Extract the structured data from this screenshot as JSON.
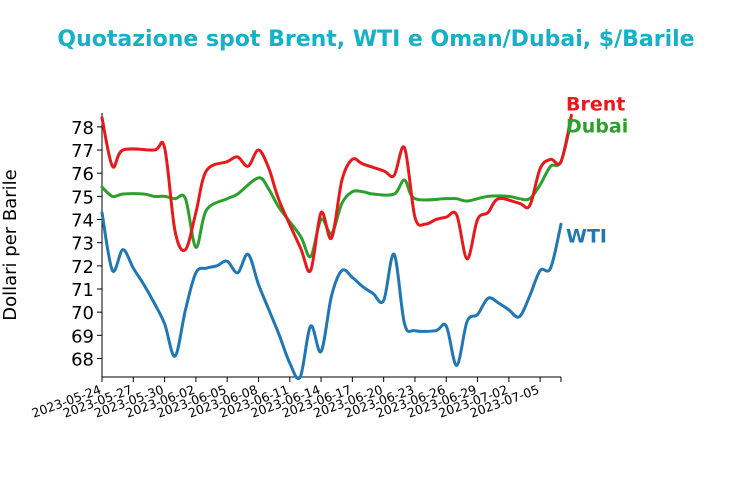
{
  "chart_data": {
    "type": "line",
    "title": "Quotazione spot Brent, WTI e Oman/Dubai, $/Barile",
    "xlabel": "",
    "ylabel": "Dollari per Barile",
    "ylim": [
      67.2,
      78.6
    ],
    "yticks": [
      68,
      69,
      70,
      71,
      72,
      73,
      74,
      75,
      76,
      77,
      78
    ],
    "xlim": [
      "2023-05-24",
      "2023-07-07"
    ],
    "xticks": [
      "2023-05-24",
      "2023-05-27",
      "2023-05-30",
      "2023-06-02",
      "2023-06-05",
      "2023-06-08",
      "2023-06-11",
      "2023-06-14",
      "2023-06-17",
      "2023-06-20",
      "2023-06-23",
      "2023-06-26",
      "2023-06-29",
      "2023-07-02",
      "2023-07-05"
    ],
    "grid": false,
    "legend": "direct-labels-right",
    "colors": {
      "title": "#17b0c8",
      "Brent": "#e8191b",
      "Dubai": "#2ca02c",
      "WTI": "#1f77b4"
    },
    "series": [
      {
        "name": "Brent",
        "label_y": 78.7,
        "points": [
          [
            "2023-05-24",
            78.4
          ],
          [
            "2023-05-25",
            76.3
          ],
          [
            "2023-05-26",
            77.0
          ],
          [
            "2023-05-29",
            77.0
          ],
          [
            "2023-05-30",
            77.1
          ],
          [
            "2023-05-31",
            73.5
          ],
          [
            "2023-06-01",
            72.7
          ],
          [
            "2023-06-02",
            74.3
          ],
          [
            "2023-06-03",
            76.1
          ],
          [
            "2023-06-05",
            76.5
          ],
          [
            "2023-06-06",
            76.7
          ],
          [
            "2023-06-07",
            76.3
          ],
          [
            "2023-06-08",
            77.0
          ],
          [
            "2023-06-09",
            76.2
          ],
          [
            "2023-06-10",
            74.8
          ],
          [
            "2023-06-12",
            72.8
          ],
          [
            "2023-06-13",
            71.8
          ],
          [
            "2023-06-14",
            74.3
          ],
          [
            "2023-06-15",
            73.2
          ],
          [
            "2023-06-16",
            75.7
          ],
          [
            "2023-06-17",
            76.6
          ],
          [
            "2023-06-18",
            76.4
          ],
          [
            "2023-06-20",
            76.1
          ],
          [
            "2023-06-21",
            75.9
          ],
          [
            "2023-06-22",
            77.1
          ],
          [
            "2023-06-23",
            74.1
          ],
          [
            "2023-06-24",
            73.8
          ],
          [
            "2023-06-25",
            74.0
          ],
          [
            "2023-06-26",
            74.1
          ],
          [
            "2023-06-27",
            74.2
          ],
          [
            "2023-06-28",
            72.3
          ],
          [
            "2023-06-29",
            74.0
          ],
          [
            "2023-06-30",
            74.3
          ],
          [
            "2023-07-01",
            74.9
          ],
          [
            "2023-07-03",
            74.7
          ],
          [
            "2023-07-04",
            74.6
          ],
          [
            "2023-07-05",
            76.2
          ],
          [
            "2023-07-06",
            76.6
          ],
          [
            "2023-07-07",
            76.5
          ],
          [
            "2023-07-08",
            78.5
          ]
        ]
      },
      {
        "name": "Dubai",
        "label_y": 77.75,
        "points": [
          [
            "2023-05-24",
            75.4
          ],
          [
            "2023-05-25",
            75.0
          ],
          [
            "2023-05-26",
            75.1
          ],
          [
            "2023-05-28",
            75.1
          ],
          [
            "2023-05-29",
            75.0
          ],
          [
            "2023-05-30",
            75.0
          ],
          [
            "2023-05-31",
            74.9
          ],
          [
            "2023-06-01",
            74.9
          ],
          [
            "2023-06-02",
            72.8
          ],
          [
            "2023-06-03",
            74.4
          ],
          [
            "2023-06-05",
            74.9
          ],
          [
            "2023-06-06",
            75.1
          ],
          [
            "2023-06-08",
            75.8
          ],
          [
            "2023-06-09",
            75.3
          ],
          [
            "2023-06-10",
            74.5
          ],
          [
            "2023-06-12",
            73.3
          ],
          [
            "2023-06-13",
            72.4
          ],
          [
            "2023-06-14",
            74.0
          ],
          [
            "2023-06-15",
            73.4
          ],
          [
            "2023-06-16",
            74.7
          ],
          [
            "2023-06-17",
            75.2
          ],
          [
            "2023-06-18",
            75.2
          ],
          [
            "2023-06-19",
            75.1
          ],
          [
            "2023-06-21",
            75.1
          ],
          [
            "2023-06-22",
            75.7
          ],
          [
            "2023-06-23",
            74.9
          ],
          [
            "2023-06-26",
            74.9
          ],
          [
            "2023-06-27",
            74.9
          ],
          [
            "2023-06-28",
            74.8
          ],
          [
            "2023-06-30",
            75.0
          ],
          [
            "2023-07-02",
            75.0
          ],
          [
            "2023-07-03",
            74.9
          ],
          [
            "2023-07-04",
            74.9
          ],
          [
            "2023-07-05",
            75.5
          ],
          [
            "2023-07-06",
            76.3
          ],
          [
            "2023-07-07",
            76.5
          ],
          [
            "2023-07-08",
            78.3
          ]
        ]
      },
      {
        "name": "WTI",
        "label_y": 73.0,
        "points": [
          [
            "2023-05-24",
            74.3
          ],
          [
            "2023-05-25",
            71.8
          ],
          [
            "2023-05-26",
            72.7
          ],
          [
            "2023-05-27",
            71.9
          ],
          [
            "2023-05-28",
            71.2
          ],
          [
            "2023-05-29",
            70.4
          ],
          [
            "2023-05-30",
            69.5
          ],
          [
            "2023-05-31",
            68.1
          ],
          [
            "2023-06-01",
            70.1
          ],
          [
            "2023-06-02",
            71.7
          ],
          [
            "2023-06-03",
            71.9
          ],
          [
            "2023-06-04",
            72.0
          ],
          [
            "2023-06-05",
            72.2
          ],
          [
            "2023-06-06",
            71.7
          ],
          [
            "2023-06-07",
            72.5
          ],
          [
            "2023-06-08",
            71.2
          ],
          [
            "2023-06-09",
            70.1
          ],
          [
            "2023-06-10",
            69.0
          ],
          [
            "2023-06-11",
            67.8
          ],
          [
            "2023-06-12",
            67.2
          ],
          [
            "2023-06-13",
            69.4
          ],
          [
            "2023-06-14",
            68.3
          ],
          [
            "2023-06-15",
            70.7
          ],
          [
            "2023-06-16",
            71.8
          ],
          [
            "2023-06-17",
            71.5
          ],
          [
            "2023-06-18",
            71.1
          ],
          [
            "2023-06-19",
            70.8
          ],
          [
            "2023-06-20",
            70.5
          ],
          [
            "2023-06-21",
            72.5
          ],
          [
            "2023-06-22",
            69.5
          ],
          [
            "2023-06-23",
            69.2
          ],
          [
            "2023-06-25",
            69.2
          ],
          [
            "2023-06-26",
            69.4
          ],
          [
            "2023-06-27",
            67.7
          ],
          [
            "2023-06-28",
            69.6
          ],
          [
            "2023-06-29",
            69.9
          ],
          [
            "2023-06-30",
            70.6
          ],
          [
            "2023-07-01",
            70.4
          ],
          [
            "2023-07-02",
            70.1
          ],
          [
            "2023-07-03",
            69.8
          ],
          [
            "2023-07-04",
            70.7
          ],
          [
            "2023-07-05",
            71.8
          ],
          [
            "2023-07-06",
            71.9
          ],
          [
            "2023-07-07",
            73.8
          ]
        ]
      }
    ]
  }
}
